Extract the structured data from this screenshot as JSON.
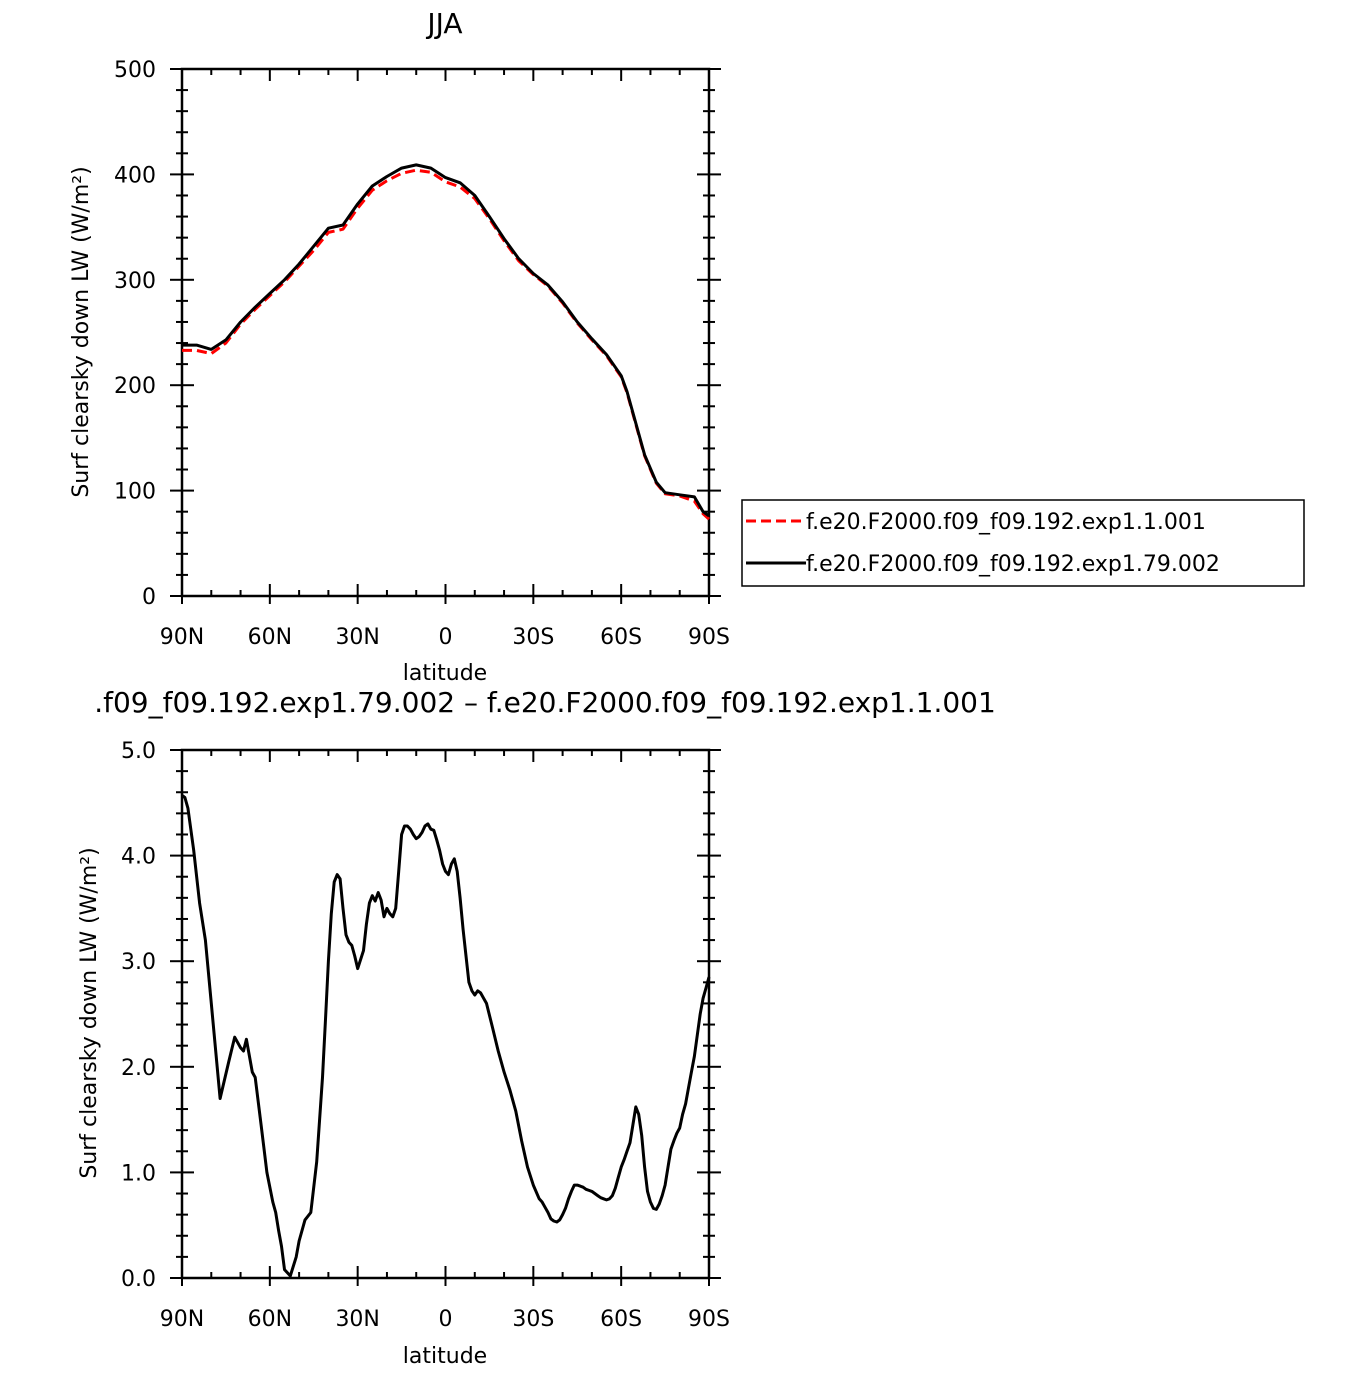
{
  "chart_data": [
    {
      "type": "line",
      "title": "JJA",
      "xlabel": "latitude",
      "ylabel": "Surf clearsky down LW (W/m²)",
      "xlim": [
        90,
        -90
      ],
      "ylim": [
        0,
        500
      ],
      "x_ticks": [
        90,
        60,
        30,
        0,
        -30,
        -60,
        -90
      ],
      "x_tick_labels": [
        "90N",
        "60N",
        "30N",
        "0",
        "30S",
        "60S",
        "90S"
      ],
      "y_ticks": [
        0,
        100,
        200,
        300,
        400,
        500
      ],
      "y_tick_labels": [
        "0",
        "100",
        "200",
        "300",
        "400",
        "500"
      ],
      "grid": false,
      "legend_position": "right",
      "series": [
        {
          "name": "f.e20.F2000.f09_f09.192.exp1.1.001",
          "color": "#ff0000",
          "style": "dashed",
          "x": [
            90,
            85,
            80,
            75,
            70,
            65,
            60,
            55,
            50,
            45,
            40,
            35,
            30,
            25,
            20,
            15,
            10,
            5,
            0,
            -5,
            -10,
            -15,
            -20,
            -25,
            -30,
            -35,
            -40,
            -45,
            -50,
            -55,
            -60,
            -62,
            -65,
            -68,
            -72,
            -75,
            -80,
            -85,
            -88,
            -90
          ],
          "values": [
            233,
            233,
            230,
            240,
            258,
            272,
            285,
            298,
            313,
            328,
            345,
            348,
            368,
            385,
            394,
            401,
            404,
            402,
            393,
            388,
            377,
            358,
            337,
            318,
            305,
            294,
            278,
            259,
            243,
            228,
            208,
            193,
            163,
            133,
            107,
            97,
            95,
            90,
            78,
            73
          ]
        },
        {
          "name": "f.e20.F2000.f09_f09.192.exp1.79.002",
          "color": "#000000",
          "style": "solid",
          "x": [
            90,
            85,
            80,
            75,
            70,
            65,
            60,
            55,
            50,
            45,
            40,
            35,
            30,
            25,
            20,
            15,
            10,
            5,
            0,
            -5,
            -10,
            -15,
            -20,
            -25,
            -30,
            -35,
            -40,
            -45,
            -50,
            -55,
            -60,
            -62,
            -65,
            -68,
            -72,
            -75,
            -80,
            -85,
            -88,
            -90
          ],
          "values": [
            238,
            238,
            234,
            243,
            260,
            274,
            287,
            300,
            315,
            332,
            349,
            352,
            372,
            389,
            398,
            406,
            409,
            406,
            397,
            392,
            380,
            360,
            339,
            320,
            306,
            295,
            279,
            260,
            244,
            229,
            209,
            194,
            164,
            134,
            108,
            98,
            96,
            94,
            80,
            76
          ]
        }
      ]
    },
    {
      "type": "line",
      "title": ".f09_f09.192.exp1.79.002 – f.e20.F2000.f09_f09.192.exp1.1.001",
      "xlabel": "latitude",
      "ylabel": "Surf clearsky down LW (W/m²)",
      "xlim": [
        90,
        -90
      ],
      "ylim": [
        0,
        5
      ],
      "x_ticks": [
        90,
        60,
        30,
        0,
        -30,
        -60,
        -90
      ],
      "x_tick_labels": [
        "90N",
        "60N",
        "30N",
        "0",
        "30S",
        "60S",
        "90S"
      ],
      "y_ticks": [
        0,
        1,
        2,
        3,
        4,
        5
      ],
      "y_tick_labels": [
        "0.0",
        "1.0",
        "2.0",
        "3.0",
        "4.0",
        "5.0"
      ],
      "grid": false,
      "series": [
        {
          "color": "#000000",
          "style": "solid",
          "x": [
            90,
            89,
            88,
            86,
            84,
            82,
            80,
            77,
            74,
            72,
            70,
            69,
            68,
            66,
            65,
            63,
            61,
            59,
            58,
            57,
            56,
            55,
            53,
            51,
            50,
            48,
            46,
            44,
            42,
            41,
            40,
            39,
            38,
            37,
            36,
            35,
            34,
            33,
            32,
            31,
            30,
            28,
            27,
            26,
            25,
            24,
            23,
            22,
            21,
            20,
            19,
            18,
            17,
            16,
            15,
            14,
            13,
            12,
            11,
            10,
            9,
            8,
            7,
            6,
            5,
            4,
            3,
            2,
            1,
            0,
            -1,
            -2,
            -3,
            -4,
            -5,
            -6,
            -7,
            -8,
            -9,
            -10,
            -11,
            -12,
            -13,
            -14,
            -16,
            -18,
            -20,
            -22,
            -24,
            -26,
            -28,
            -30,
            -32,
            -33,
            -34,
            -35,
            -36,
            -37,
            -38,
            -39,
            -40,
            -41,
            -42,
            -43,
            -44,
            -45,
            -46,
            -47,
            -48,
            -49,
            -50,
            -51,
            -52,
            -53,
            -54,
            -55,
            -56,
            -57,
            -58,
            -59,
            -60,
            -61,
            -62,
            -63,
            -64,
            -65,
            -66,
            -67,
            -68,
            -69,
            -70,
            -71,
            -72,
            -73,
            -74,
            -75,
            -76,
            -77,
            -78,
            -79,
            -80,
            -81,
            -82,
            -83,
            -84,
            -85,
            -86,
            -87,
            -88,
            -89,
            -90
          ],
          "values": [
            4.57,
            4.55,
            4.45,
            4.05,
            3.55,
            3.2,
            2.6,
            1.7,
            2.05,
            2.28,
            2.18,
            2.15,
            2.26,
            1.95,
            1.9,
            1.45,
            1.0,
            0.72,
            0.62,
            0.45,
            0.3,
            0.08,
            0.02,
            0.2,
            0.35,
            0.55,
            0.62,
            1.1,
            1.9,
            2.45,
            3.0,
            3.45,
            3.75,
            3.82,
            3.78,
            3.5,
            3.25,
            3.18,
            3.15,
            3.05,
            2.93,
            3.1,
            3.35,
            3.55,
            3.62,
            3.57,
            3.65,
            3.58,
            3.42,
            3.5,
            3.45,
            3.42,
            3.5,
            3.85,
            4.2,
            4.28,
            4.28,
            4.25,
            4.2,
            4.16,
            4.18,
            4.22,
            4.28,
            4.3,
            4.25,
            4.24,
            4.15,
            4.05,
            3.92,
            3.85,
            3.82,
            3.92,
            3.97,
            3.85,
            3.6,
            3.3,
            3.05,
            2.8,
            2.72,
            2.68,
            2.72,
            2.7,
            2.65,
            2.6,
            2.38,
            2.15,
            1.95,
            1.78,
            1.58,
            1.3,
            1.05,
            0.88,
            0.75,
            0.72,
            0.67,
            0.62,
            0.56,
            0.54,
            0.53,
            0.55,
            0.6,
            0.66,
            0.75,
            0.82,
            0.88,
            0.88,
            0.87,
            0.86,
            0.84,
            0.83,
            0.82,
            0.8,
            0.78,
            0.76,
            0.75,
            0.74,
            0.75,
            0.78,
            0.85,
            0.95,
            1.05,
            1.12,
            1.2,
            1.28,
            1.45,
            1.62,
            1.55,
            1.35,
            1.05,
            0.82,
            0.72,
            0.66,
            0.65,
            0.7,
            0.78,
            0.88,
            1.05,
            1.22,
            1.3,
            1.37,
            1.42,
            1.55,
            1.65,
            1.8,
            1.95,
            2.1,
            2.3,
            2.5,
            2.65,
            2.75,
            2.85
          ]
        }
      ]
    }
  ]
}
